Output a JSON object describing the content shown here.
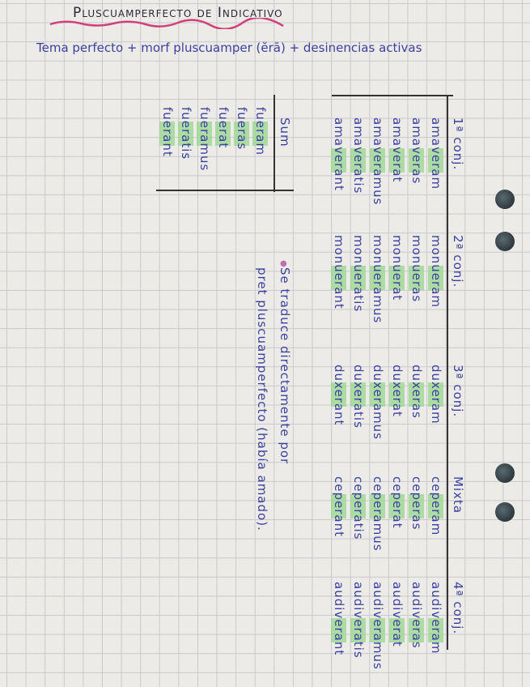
{
  "title": "Pluscuamperfecto de Indicativo",
  "subtitle": "Tema perfecto + morf pluscuamper (ĕrā) + desinencias activas",
  "table": {
    "columns": [
      {
        "header": "1ª conj.",
        "forms": [
          "amaveram",
          "amaveras",
          "amaverat",
          "amaveramus",
          "amaveratis",
          "amaverant"
        ]
      },
      {
        "header": "2ª conj.",
        "forms": [
          "monueram",
          "monueras",
          "monuerat",
          "monueramus",
          "monueratis",
          "monuerant"
        ]
      },
      {
        "header": "3ª conj.",
        "forms": [
          "duxeram",
          "duxeras",
          "duxerat",
          "duxeramus",
          "duxeratis",
          "duxerant"
        ]
      },
      {
        "header": "Mixta",
        "forms": [
          "ceperam",
          "ceperas",
          "ceperat",
          "ceperamus",
          "ceperatis",
          "ceperant"
        ]
      },
      {
        "header": "4ª conj.",
        "forms": [
          "audiveram",
          "audiveras",
          "audiverat",
          "audiveramus",
          "audiveratis",
          "audiverant"
        ]
      }
    ]
  },
  "sum": {
    "header": "Sum",
    "forms": [
      "fueram",
      "fueras",
      "fuerat",
      "fueramus",
      "fueratis",
      "fuerant"
    ]
  },
  "note": {
    "line1": "Se traduce directamente por",
    "line2": "pret pluscuamperfecto (había amado)."
  },
  "colors": {
    "ink": "#3b3f9e",
    "highlight": "#96d78c",
    "underline": "#d0407a"
  }
}
